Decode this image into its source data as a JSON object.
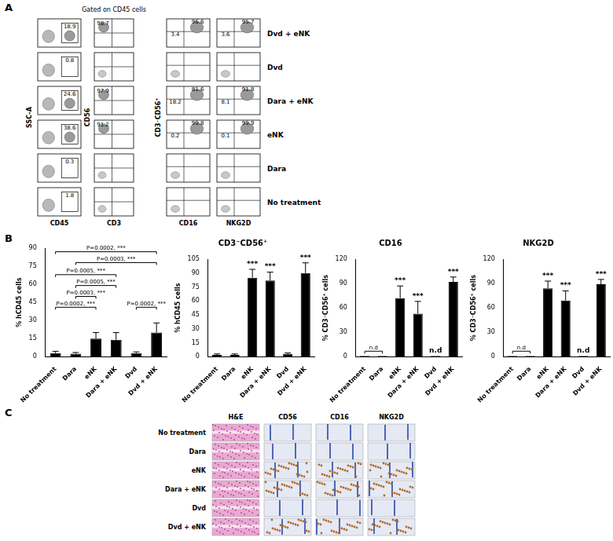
{
  "figure": {
    "panel_labels": [
      "A",
      "B",
      "C"
    ],
    "panel_a": {
      "header": "Gated on CD45 cells",
      "x_labels": [
        "CD45",
        "CD3",
        "CD16",
        "NKG2D"
      ],
      "y_labels": [
        "SSC-A",
        "CD56",
        "CD3⁻CD56⁺"
      ],
      "rows": [
        {
          "label": "Dvd + eNK",
          "gates": [
            [
              18.9
            ],
            [
              98.7
            ],
            [
              96.6,
              3.4
            ],
            [
              95.7,
              3.6
            ]
          ]
        },
        {
          "label": "Dvd",
          "gates": [
            [
              0.8
            ],
            [],
            [],
            []
          ]
        },
        {
          "label": "Dara + eNK",
          "gates": [
            [
              24.6
            ],
            [
              97.9
            ],
            [
              81.6,
              18.2
            ],
            [
              91.8,
              8.1
            ]
          ]
        },
        {
          "label": "eNK",
          "gates": [
            [
              38.6
            ],
            [
              91.2
            ],
            [
              99.8,
              0.2
            ],
            [
              99.9,
              0.1
            ]
          ]
        },
        {
          "label": "Dara",
          "gates": [
            [
              0.3
            ],
            [],
            [],
            []
          ]
        },
        {
          "label": "No treatment",
          "gates": [
            [
              1.8
            ],
            [],
            [],
            []
          ]
        }
      ]
    },
    "panel_c": {
      "columns": [
        "H&E",
        "CD56",
        "CD16",
        "NKG2D"
      ],
      "rows": [
        "No treatment",
        "Dara",
        "eNK",
        "Dara + eNK",
        "Dvd",
        "Dvd + eNK"
      ]
    }
  },
  "chart_data": [
    {
      "type": "bar",
      "y_label": "% hCD45 cells",
      "categories": [
        "No treatment",
        "Dara",
        "eNK",
        "Dara + eNK",
        "Dvd",
        "Dvd + eNK"
      ],
      "values": [
        3,
        2.5,
        15,
        14,
        3,
        20
      ],
      "errors": [
        1.5,
        1,
        5,
        6,
        1,
        8
      ],
      "color": "#000000",
      "ylim": [
        0,
        90
      ],
      "yticks": [
        0,
        15,
        30,
        45,
        60,
        75,
        90
      ],
      "grid": false,
      "annotations": [
        {
          "from": "No treatment",
          "to": "Dvd + eNK",
          "y": 87,
          "text": "P=0.0002, ***"
        },
        {
          "from": "Dara",
          "to": "Dvd + eNK",
          "y": 78,
          "text": "P=0.0003, ***"
        },
        {
          "from": "No treatment",
          "to": "Dara + eNK",
          "y": 68,
          "text": "P=0.0005, ***"
        },
        {
          "from": "Dara",
          "to": "Dara + eNK",
          "y": 59,
          "text": "P=0.0005, ***"
        },
        {
          "from": "Dara",
          "to": "eNK",
          "y": 50,
          "text": "P=0.0003, ***"
        },
        {
          "from": "No treatment",
          "to": "eNK",
          "y": 41,
          "text": "P=0.0002, ***"
        },
        {
          "from": "Dvd",
          "to": "Dvd + eNK",
          "y": 41,
          "text": "P=0.0002, ***"
        }
      ]
    },
    {
      "type": "bar",
      "title": "CD3⁻CD56⁺",
      "y_label": "% hCD45 cells",
      "categories": [
        "No treatment",
        "Dara",
        "eNK",
        "Dara + eNK",
        "Dvd",
        "Dvd + eNK"
      ],
      "values": [
        2,
        2,
        85,
        82,
        3,
        90
      ],
      "errors": [
        1,
        1,
        9,
        9,
        1,
        11
      ],
      "color": "#000000",
      "ylim": [
        0,
        105
      ],
      "yticks": [
        0,
        15,
        30,
        45,
        60,
        75,
        90,
        105
      ],
      "grid": false,
      "annotations": [
        {
          "category": "eNK",
          "text": "***"
        },
        {
          "category": "Dara + eNK",
          "text": "***"
        },
        {
          "category": "Dvd + eNK",
          "text": "***"
        }
      ]
    },
    {
      "type": "bar",
      "title": "CD16",
      "y_label": "% CD3⁻CD56⁺ cells",
      "categories": [
        "No treatment",
        "Dara",
        "eNK",
        "Dara + eNK",
        "Dvd",
        "Dvd + eNK"
      ],
      "values": [
        1,
        1,
        72,
        53,
        1,
        92
      ],
      "errors": [
        0,
        0,
        15,
        15,
        0,
        6
      ],
      "color": "#000000",
      "ylim": [
        0,
        120
      ],
      "yticks": [
        0,
        30,
        60,
        90,
        120
      ],
      "grid": false,
      "annotations": [
        {
          "from": "No treatment",
          "to": "Dara",
          "text": "n.d"
        },
        {
          "category": "eNK",
          "text": "***"
        },
        {
          "category": "Dara + eNK",
          "text": "***"
        },
        {
          "category": "Dvd",
          "text": "n.d"
        },
        {
          "category": "Dvd + eNK",
          "text": "***"
        }
      ]
    },
    {
      "type": "bar",
      "title": "NKG2D",
      "y_label": "% CD3⁻CD56⁺ cells",
      "categories": [
        "No treatment",
        "Dara",
        "eNK",
        "Dara + eNK",
        "Dvd",
        "Dvd + eNK"
      ],
      "values": [
        1,
        1,
        84,
        69,
        1,
        89
      ],
      "errors": [
        0,
        0,
        9,
        12,
        0,
        6
      ],
      "color": "#000000",
      "ylim": [
        0,
        120
      ],
      "yticks": [
        0,
        30,
        60,
        90,
        120
      ],
      "grid": false,
      "annotations": [
        {
          "from": "No treatment",
          "to": "Dara",
          "text": "n.d"
        },
        {
          "category": "eNK",
          "text": "***"
        },
        {
          "category": "Dara + eNK",
          "text": "***"
        },
        {
          "category": "Dvd",
          "text": "n.d"
        },
        {
          "category": "Dvd + eNK",
          "text": "***"
        }
      ]
    }
  ]
}
